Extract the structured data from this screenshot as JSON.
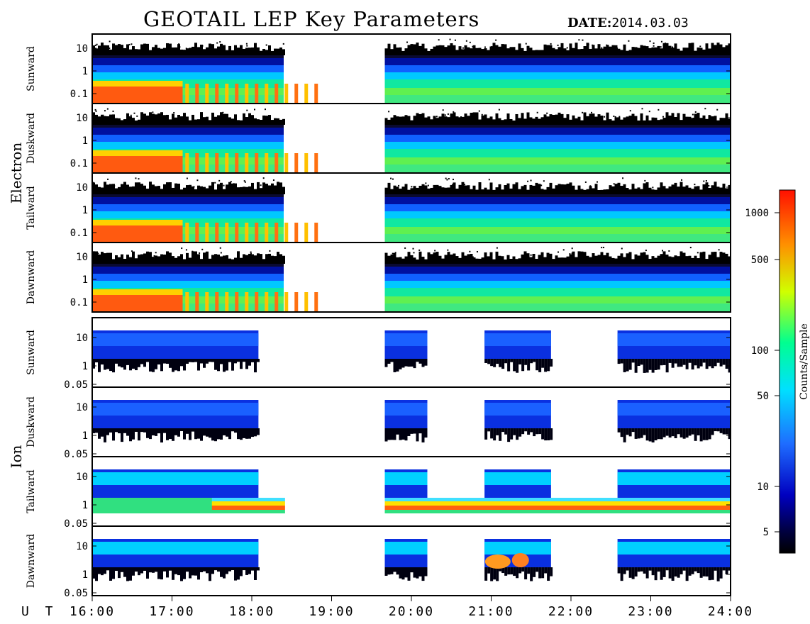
{
  "title": "GEOTAIL LEP Key Parameters",
  "date_label": "DATE:",
  "date_value": "2014.03.03",
  "ut_label": "U T",
  "colorbar_label": "Counts/Sample",
  "chart_data": {
    "type": "heatmap",
    "x_axis": {
      "label": "U T",
      "range": [
        "16:00",
        "24:00"
      ],
      "ticks": [
        "16:00",
        "17:00",
        "18:00",
        "19:00",
        "20:00",
        "21:00",
        "22:00",
        "23:00",
        "24:00"
      ]
    },
    "colorbar": {
      "label": "Counts/Sample",
      "scale": "log",
      "ticks": [
        "1000",
        "500",
        "100",
        "50",
        "10",
        "5"
      ],
      "colors": [
        "#000000",
        "#00008b",
        "#0000ff",
        "#1e90ff",
        "#00ffff",
        "#00ff80",
        "#ffff00",
        "#ff8c00",
        "#ff0000"
      ]
    },
    "species": [
      {
        "name": "Electron",
        "y_scale": "log",
        "y_ticks": [
          "10",
          "1",
          "0.1"
        ],
        "panels": [
          {
            "name": "Sunward"
          },
          {
            "name": "Duskward"
          },
          {
            "name": "Tailward"
          },
          {
            "name": "Dawnward"
          }
        ],
        "data_coverage": [
          [
            "16:00",
            "18:24"
          ],
          [
            "19:40",
            "24:00"
          ]
        ]
      },
      {
        "name": "Ion",
        "y_scale": "log",
        "y_ticks": [
          "10",
          "1",
          "0.05"
        ],
        "panels": [
          {
            "name": "Sunward"
          },
          {
            "name": "Duskward"
          },
          {
            "name": "Tailward"
          },
          {
            "name": "Dawnward"
          }
        ],
        "data_coverage": [
          [
            "16:00",
            "18:05"
          ],
          [
            "19:40",
            "20:12"
          ],
          [
            "20:55",
            "21:45"
          ],
          [
            "22:35",
            "24:00"
          ]
        ]
      }
    ]
  }
}
